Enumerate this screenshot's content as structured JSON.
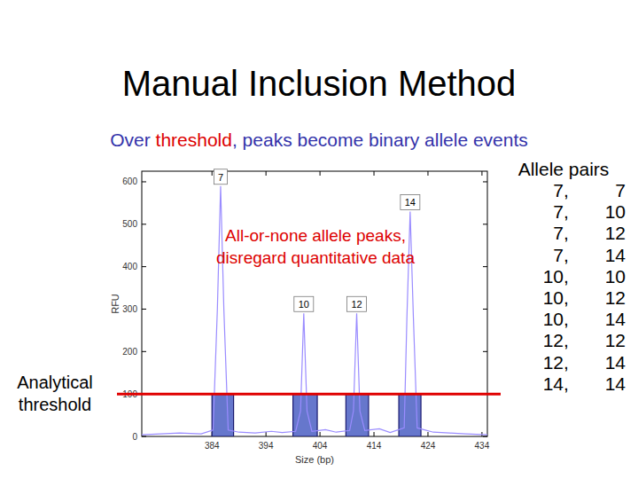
{
  "title": "Manual Inclusion Method",
  "subtitle": {
    "text": "Over threshold, peaks become binary allele events",
    "highlight": "threshold",
    "color": "#3333aa",
    "highlight_color": "#dd0000"
  },
  "chart_data": {
    "type": "line",
    "x_label": "Size (bp)",
    "y_label": "RFU",
    "color": "#9a8cff",
    "x": [
      371,
      378,
      382,
      384.2,
      385,
      385.6,
      386.2,
      387,
      389,
      392,
      395,
      397,
      399.5,
      400.4,
      401,
      401.6,
      402.5,
      405,
      407,
      409.5,
      410.2,
      410.8,
      411.4,
      412.3,
      415,
      417,
      419.6,
      420.1,
      420.7,
      421.3,
      422,
      425,
      428,
      431,
      435
    ],
    "values": [
      4,
      8,
      6,
      15,
      300,
      590,
      300,
      15,
      10,
      8,
      12,
      9,
      12,
      60,
      290,
      60,
      12,
      16,
      10,
      14,
      60,
      290,
      60,
      14,
      18,
      9,
      20,
      280,
      530,
      280,
      20,
      10,
      8,
      6,
      4
    ],
    "xlim": [
      371,
      435
    ],
    "ylim": [
      0,
      625
    ],
    "xticks": [
      384,
      394,
      404,
      414,
      424,
      434
    ],
    "yticks": [
      0,
      100,
      200,
      300,
      400,
      500,
      600
    ],
    "peaks": [
      {
        "label": "7",
        "x": 385.6,
        "value": 590
      },
      {
        "label": "10",
        "x": 401,
        "value": 290
      },
      {
        "label": "12",
        "x": 410.8,
        "value": 290
      },
      {
        "label": "14",
        "x": 420.7,
        "value": 530
      }
    ],
    "allele_bins": {
      "edges": [
        [
          384,
          388
        ],
        [
          399,
          403.5
        ],
        [
          408.8,
          413
        ],
        [
          418.6,
          422.7
        ]
      ],
      "value": 100,
      "color": "#6677cc"
    },
    "threshold": {
      "label": [
        "Analytical",
        "threshold"
      ],
      "value": 100,
      "color": "#e00000"
    },
    "annotation": [
      "All-or-none allele peaks,",
      "disregard quantitative data"
    ],
    "annotation_color": "#dd0000"
  },
  "allele_pairs": {
    "title": "Allele pairs",
    "separator": ",",
    "pairs": [
      [
        7,
        7
      ],
      [
        7,
        10
      ],
      [
        7,
        12
      ],
      [
        7,
        14
      ],
      [
        10,
        10
      ],
      [
        10,
        12
      ],
      [
        10,
        14
      ],
      [
        12,
        12
      ],
      [
        12,
        14
      ],
      [
        14,
        14
      ]
    ]
  }
}
